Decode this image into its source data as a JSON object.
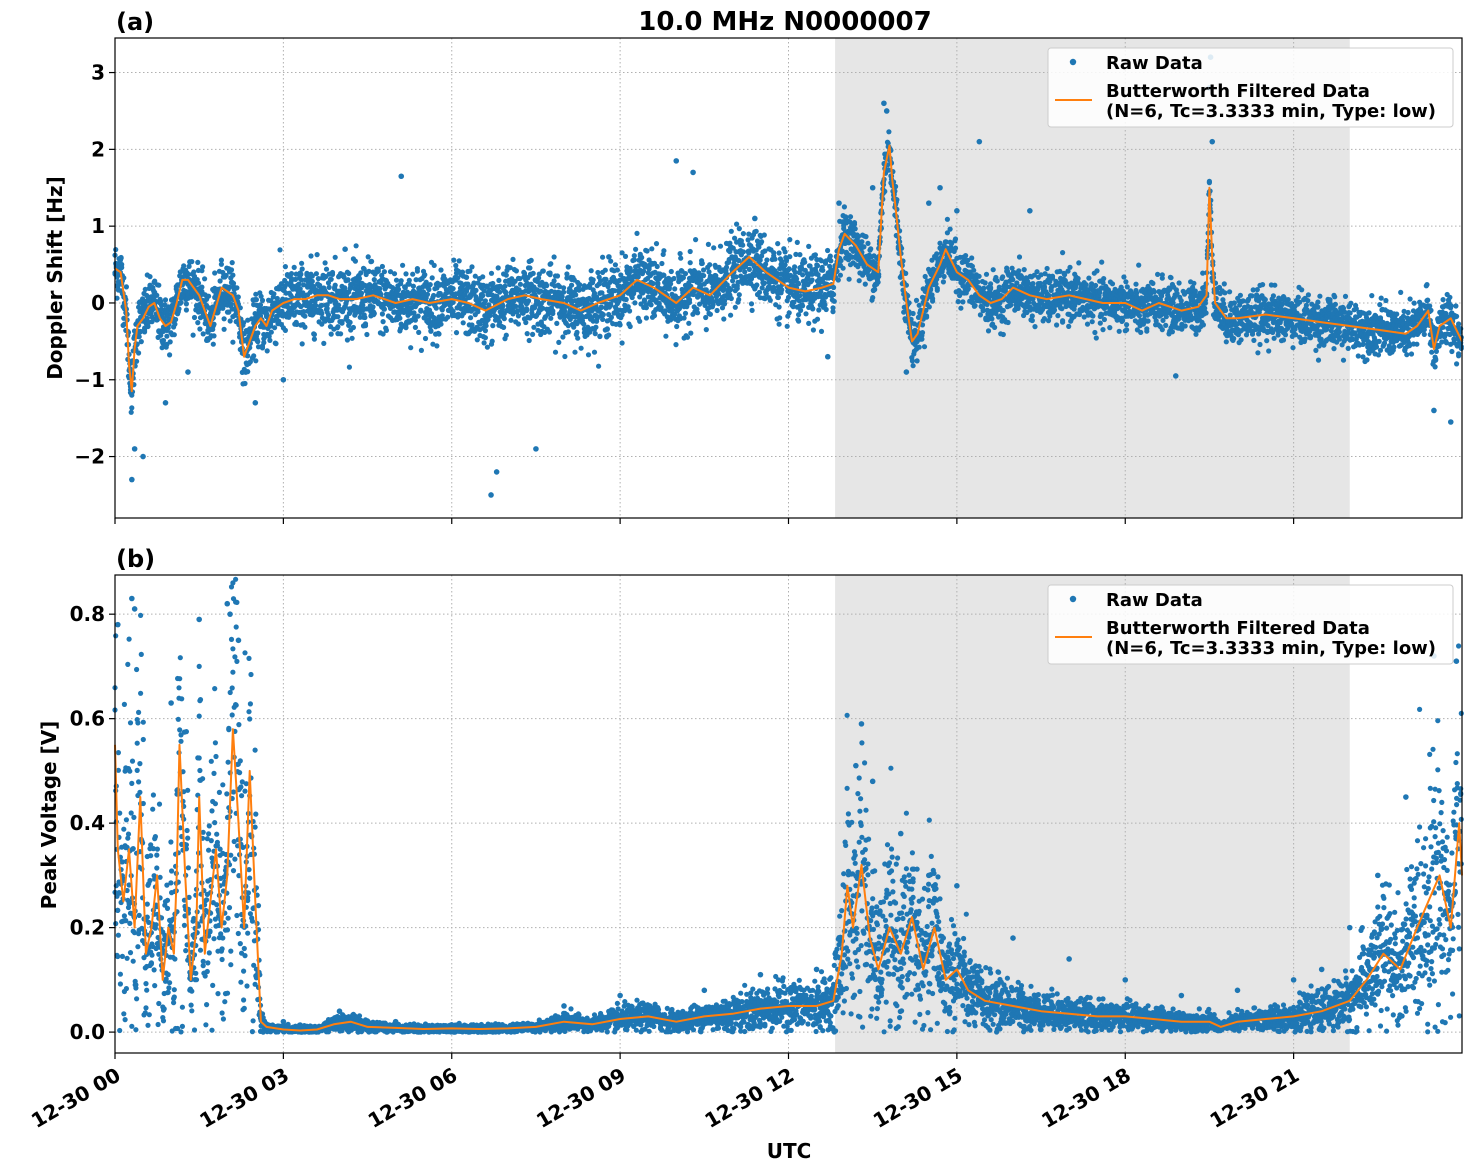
{
  "figure": {
    "title": "10.0 MHz N0000007",
    "xlabel": "UTC",
    "x_ticks": [
      "12-30 00",
      "12-30 03",
      "12-30 06",
      "12-30 09",
      "12-30 12",
      "12-30 15",
      "12-30 18",
      "12-30 21"
    ],
    "colors": {
      "raw": "#1f77b4",
      "filtered": "#ff7f0e",
      "shade": "#e6e6e6",
      "grid": "#b0b0b0"
    }
  },
  "chart_data": [
    {
      "type": "scatter",
      "panel_label": "(a)",
      "title": "10.0 MHz N0000007",
      "xlabel": "",
      "ylabel": "Doppler Shift [Hz]",
      "x_unit": "hours UTC on 12-30",
      "xlim": [
        0,
        24
      ],
      "ylim": [
        -2.8,
        3.45
      ],
      "y_ticks": [
        3,
        2,
        1,
        0,
        -1,
        -2
      ],
      "y_tick_labels": [
        "3",
        "2",
        "1",
        "0",
        "−1",
        "−2"
      ],
      "shaded_x_range": [
        12.83,
        22.0
      ],
      "grid": true,
      "legend_position": "top-right",
      "legend": [
        "Raw Data",
        "Butterworth Filtered Data",
        "(N=6, Tc=3.3333 min, Type: low)"
      ],
      "series": [
        {
          "name": "Butterworth Filtered Data",
          "kind": "line",
          "x": [
            0,
            0.1,
            0.2,
            0.25,
            0.3,
            0.35,
            0.4,
            0.5,
            0.6,
            0.7,
            0.8,
            0.9,
            1.0,
            1.1,
            1.2,
            1.3,
            1.4,
            1.5,
            1.6,
            1.7,
            1.8,
            1.9,
            2.0,
            2.1,
            2.2,
            2.3,
            2.4,
            2.5,
            2.6,
            2.7,
            2.8,
            3.0,
            3.2,
            3.4,
            3.6,
            3.8,
            4.0,
            4.3,
            4.6,
            5.0,
            5.3,
            5.6,
            6.0,
            6.3,
            6.6,
            7.0,
            7.3,
            7.6,
            8.0,
            8.3,
            8.6,
            9.0,
            9.3,
            9.6,
            10.0,
            10.3,
            10.6,
            11.0,
            11.3,
            11.6,
            12.0,
            12.3,
            12.6,
            12.8,
            12.9,
            13.0,
            13.2,
            13.4,
            13.6,
            13.7,
            13.8,
            13.85,
            13.9,
            14.0,
            14.1,
            14.2,
            14.3,
            14.5,
            14.7,
            14.8,
            15.0,
            15.2,
            15.4,
            15.6,
            15.8,
            16.0,
            16.3,
            16.6,
            17.0,
            17.3,
            17.6,
            18.0,
            18.3,
            18.6,
            19.0,
            19.3,
            19.45,
            19.5,
            19.55,
            19.6,
            19.8,
            20.0,
            20.5,
            21.0,
            21.5,
            22.0,
            22.5,
            23.0,
            23.2,
            23.4,
            23.5,
            23.6,
            23.8,
            24.0
          ],
          "y": [
            0.45,
            0.4,
            -0.1,
            -0.8,
            -1.15,
            -0.6,
            -0.3,
            -0.2,
            -0.05,
            0.0,
            -0.2,
            -0.3,
            -0.25,
            0.0,
            0.3,
            0.3,
            0.2,
            0.1,
            -0.1,
            -0.3,
            -0.05,
            0.2,
            0.15,
            0.1,
            -0.1,
            -0.7,
            -0.5,
            -0.3,
            -0.2,
            -0.3,
            -0.1,
            0.0,
            0.05,
            0.05,
            0.1,
            0.1,
            0.05,
            0.05,
            0.1,
            0.0,
            0.05,
            0.0,
            0.05,
            0.0,
            -0.1,
            0.05,
            0.1,
            0.05,
            0.0,
            -0.1,
            0.0,
            0.1,
            0.3,
            0.2,
            0.0,
            0.2,
            0.1,
            0.4,
            0.6,
            0.4,
            0.2,
            0.15,
            0.2,
            0.25,
            0.7,
            0.9,
            0.75,
            0.5,
            0.4,
            1.7,
            2.05,
            1.6,
            1.3,
            0.6,
            0.0,
            -0.5,
            -0.4,
            0.2,
            0.5,
            0.7,
            0.4,
            0.3,
            0.1,
            0.0,
            0.05,
            0.2,
            0.1,
            0.05,
            0.1,
            0.05,
            0.0,
            0.0,
            -0.1,
            0.0,
            -0.1,
            -0.05,
            0.1,
            1.5,
            0.6,
            0.0,
            -0.2,
            -0.2,
            -0.15,
            -0.2,
            -0.25,
            -0.3,
            -0.35,
            -0.4,
            -0.3,
            -0.1,
            -0.6,
            -0.3,
            -0.2,
            -0.5
          ],
          "color": "#ff7f0e"
        },
        {
          "name": "Raw Data",
          "kind": "markers",
          "note": "dense noisy scatter around the filtered curve",
          "x": [
            0.3,
            0.35,
            0.5,
            0.9,
            1.3,
            2.5,
            3.0,
            4.1,
            5.1,
            6.7,
            6.8,
            7.5,
            8.8,
            10.0,
            10.3,
            11.4,
            12.7,
            12.9,
            13.5,
            13.7,
            13.75,
            14.1,
            14.5,
            14.7,
            15.0,
            15.4,
            16.3,
            18.9,
            19.5,
            19.52,
            19.55,
            23.5,
            23.8
          ],
          "y": [
            -2.3,
            -1.9,
            -2.0,
            -1.3,
            -0.9,
            -1.3,
            -1.0,
            0.7,
            1.65,
            -2.5,
            -2.2,
            -1.9,
            0.6,
            1.85,
            1.7,
            1.1,
            -0.7,
            1.3,
            1.5,
            2.6,
            2.5,
            -0.9,
            1.3,
            1.5,
            1.2,
            2.1,
            1.2,
            -0.95,
            2.8,
            3.2,
            2.1,
            -1.4,
            -1.55
          ],
          "color": "#1f77b4"
        }
      ]
    },
    {
      "type": "scatter",
      "panel_label": "(b)",
      "title": "",
      "xlabel": "UTC",
      "ylabel": "Peak Voltage [V]",
      "x_unit": "hours UTC on 12-30",
      "xlim": [
        0,
        24
      ],
      "ylim": [
        -0.04,
        0.875
      ],
      "y_ticks": [
        0.8,
        0.6,
        0.4,
        0.2,
        0.0
      ],
      "y_tick_labels": [
        "0.8",
        "0.6",
        "0.4",
        "0.2",
        "0.0"
      ],
      "shaded_x_range": [
        12.83,
        22.0
      ],
      "grid": true,
      "legend_position": "top-right",
      "legend": [
        "Raw Data",
        "Butterworth Filtered Data",
        "(N=6, Tc=3.3333 min, Type: low)"
      ],
      "series": [
        {
          "name": "Butterworth Filtered Data",
          "kind": "line",
          "x": [
            0,
            0.05,
            0.15,
            0.25,
            0.35,
            0.45,
            0.55,
            0.65,
            0.75,
            0.85,
            0.95,
            1.05,
            1.1,
            1.15,
            1.25,
            1.35,
            1.45,
            1.5,
            1.6,
            1.7,
            1.8,
            1.9,
            2.0,
            2.1,
            2.2,
            2.3,
            2.4,
            2.5,
            2.6,
            2.7,
            3.0,
            3.3,
            3.6,
            3.9,
            4.2,
            4.5,
            5.0,
            5.5,
            6.0,
            6.5,
            7.0,
            7.5,
            8.0,
            8.5,
            9.0,
            9.5,
            10.0,
            10.5,
            11.0,
            11.5,
            12.0,
            12.5,
            12.8,
            12.95,
            13.05,
            13.15,
            13.3,
            13.45,
            13.6,
            13.8,
            14.0,
            14.2,
            14.4,
            14.6,
            14.8,
            15.0,
            15.2,
            15.5,
            16.0,
            16.5,
            17.0,
            17.5,
            18.0,
            18.5,
            19.0,
            19.5,
            19.7,
            20.0,
            20.5,
            21.0,
            21.5,
            22.0,
            22.3,
            22.6,
            22.9,
            23.2,
            23.4,
            23.6,
            23.8,
            23.95,
            24.0
          ],
          "y": [
            0.55,
            0.35,
            0.25,
            0.35,
            0.2,
            0.45,
            0.15,
            0.2,
            0.3,
            0.1,
            0.2,
            0.15,
            0.3,
            0.55,
            0.3,
            0.1,
            0.2,
            0.45,
            0.15,
            0.25,
            0.35,
            0.2,
            0.3,
            0.58,
            0.4,
            0.2,
            0.5,
            0.25,
            0.02,
            0.01,
            0.005,
            0.003,
            0.005,
            0.015,
            0.02,
            0.01,
            0.008,
            0.006,
            0.007,
            0.006,
            0.007,
            0.01,
            0.02,
            0.015,
            0.025,
            0.03,
            0.02,
            0.03,
            0.035,
            0.045,
            0.05,
            0.05,
            0.06,
            0.15,
            0.28,
            0.2,
            0.32,
            0.18,
            0.12,
            0.2,
            0.15,
            0.22,
            0.12,
            0.2,
            0.1,
            0.12,
            0.08,
            0.06,
            0.05,
            0.04,
            0.035,
            0.03,
            0.03,
            0.025,
            0.02,
            0.02,
            0.01,
            0.02,
            0.025,
            0.03,
            0.04,
            0.06,
            0.1,
            0.15,
            0.12,
            0.2,
            0.25,
            0.3,
            0.2,
            0.4,
            0.3
          ],
          "color": "#ff7f0e"
        },
        {
          "name": "Raw Data",
          "kind": "markers",
          "note": "dense noisy scatter, envelope shown by these peaks",
          "x": [
            0.05,
            0.3,
            0.35,
            1.0,
            1.5,
            2.0,
            2.05,
            2.2,
            3.0,
            4.0,
            5.0,
            8.0,
            9.0,
            10.5,
            11.5,
            12.5,
            13.2,
            13.3,
            13.5,
            14.0,
            14.5,
            15.0,
            16.0,
            17.0,
            18.0,
            19.0,
            20.0,
            21.0,
            21.5,
            22.0,
            22.5,
            23.0,
            23.5,
            23.9
          ],
          "y": [
            0.78,
            0.83,
            0.81,
            0.63,
            0.79,
            0.82,
            0.8,
            0.75,
            0.02,
            0.04,
            0.02,
            0.05,
            0.07,
            0.08,
            0.11,
            0.12,
            0.51,
            0.59,
            0.48,
            0.38,
            0.3,
            0.28,
            0.18,
            0.14,
            0.1,
            0.07,
            0.08,
            0.1,
            0.12,
            0.2,
            0.3,
            0.45,
            0.72,
            0.71
          ],
          "color": "#1f77b4"
        }
      ]
    }
  ]
}
